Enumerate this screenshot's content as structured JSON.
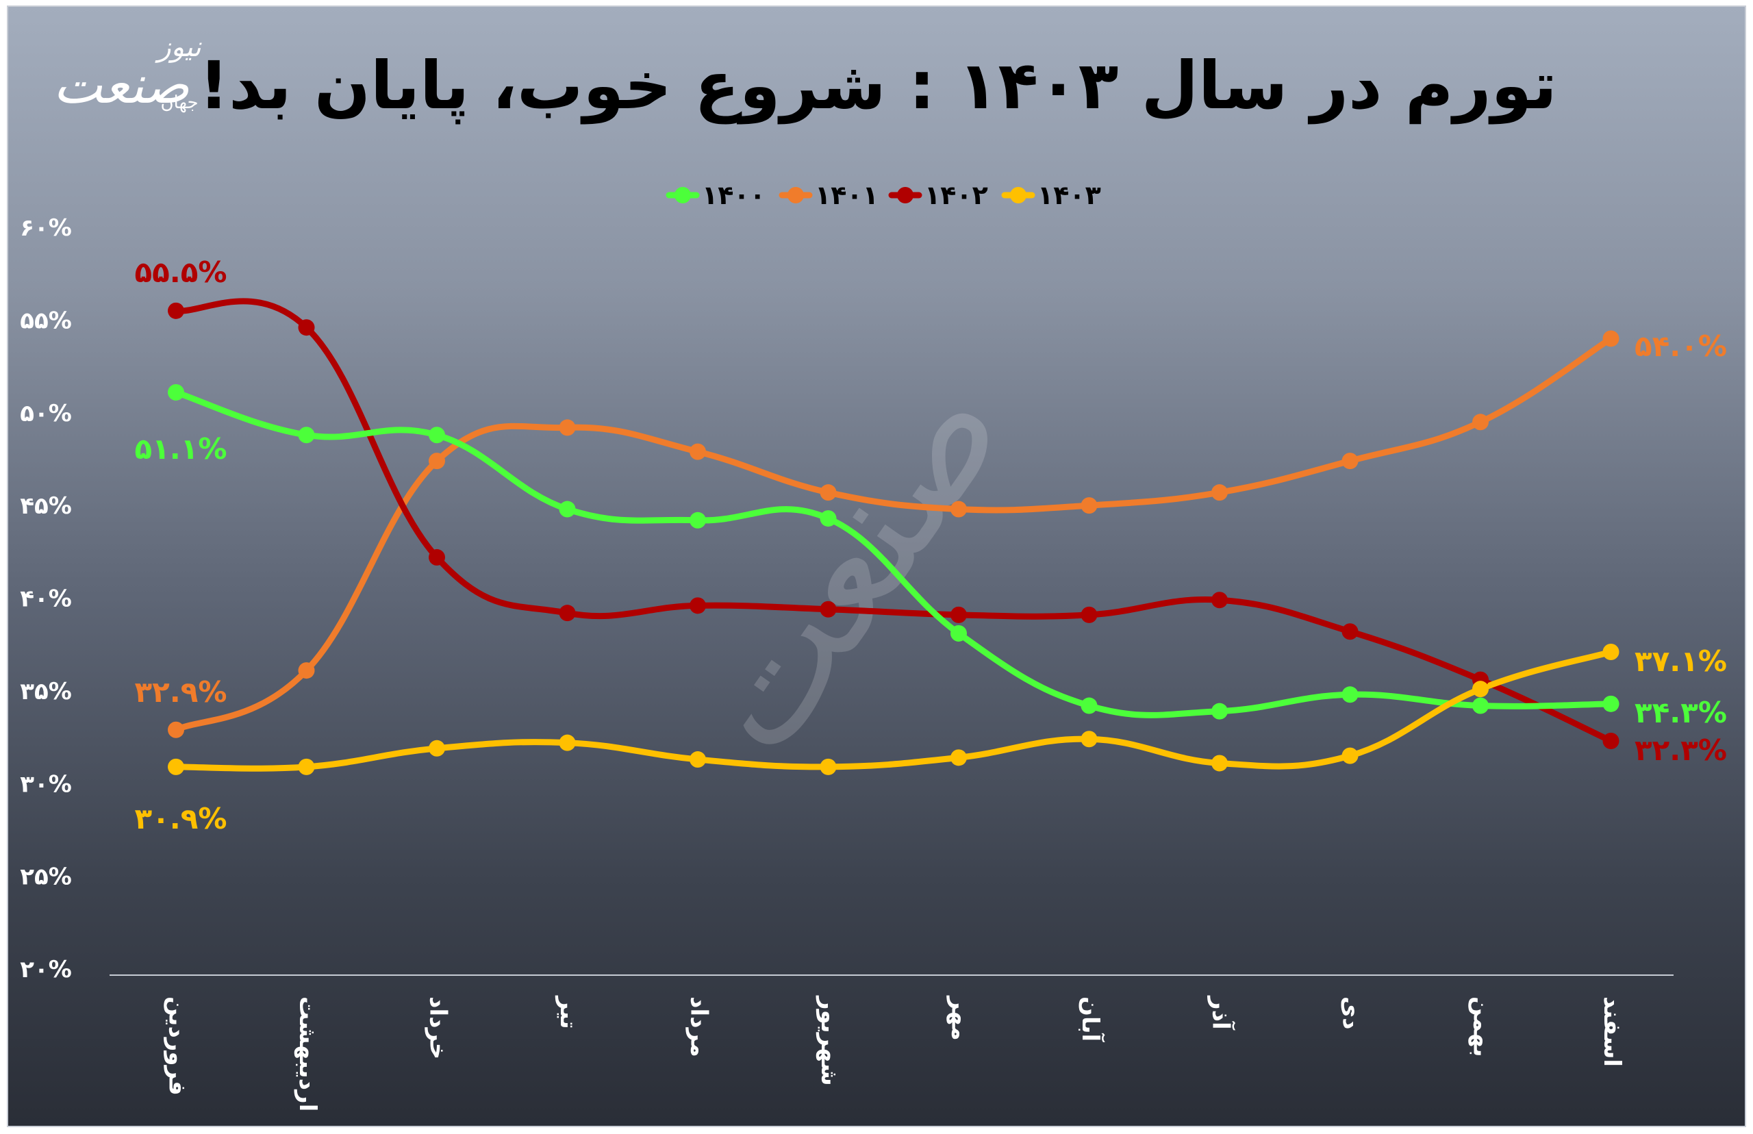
{
  "chart_data": {
    "type": "line",
    "title": "تورم در سال ۱۴۰۳ : شروع خوب، پایان بد!",
    "categories": [
      "فروردین",
      "اردیبهشت",
      "خرداد",
      "تیر",
      "مرداد",
      "شهریور",
      "مهر",
      "آبان",
      "آذر",
      "دی",
      "بهمن",
      "اسفند"
    ],
    "y_tick_labels": [
      "۲۰%",
      "۲۵%",
      "۳۰%",
      "۳۵%",
      "۴۰%",
      "۴۵%",
      "۵۰%",
      "۵۵%",
      "۶۰%"
    ],
    "ylim": [
      20,
      60
    ],
    "grid": false,
    "legend_position": "top-center",
    "series": [
      {
        "name": "۱۴۰۰",
        "color": "#4cff3a",
        "values": [
          51.1,
          48.8,
          48.8,
          44.8,
          44.2,
          44.3,
          38.1,
          34.2,
          33.9,
          34.8,
          34.2,
          34.3
        ],
        "label_text": [
          "۵۱.۱%",
          "۳۴.۳%"
        ]
      },
      {
        "name": "۱۴۰۱",
        "color": "#f07c2b",
        "values": [
          32.9,
          36.1,
          47.4,
          49.2,
          47.9,
          45.7,
          44.8,
          45.0,
          45.7,
          47.4,
          49.5,
          54.0
        ],
        "label_text": [
          "۳۲.۹%",
          "۵۴.۰%"
        ]
      },
      {
        "name": "۱۴۰۲",
        "color": "#b00000",
        "values": [
          55.5,
          54.6,
          42.2,
          39.2,
          39.6,
          39.4,
          39.1,
          39.1,
          39.9,
          38.2,
          35.6,
          32.3
        ],
        "label_text": [
          "۵۵.۵%",
          "۳۲.۳%"
        ]
      },
      {
        "name": "۱۴۰۳",
        "color": "#ffc000",
        "values": [
          30.9,
          30.9,
          31.9,
          32.2,
          31.3,
          30.9,
          31.4,
          32.4,
          31.1,
          31.5,
          35.1,
          37.1
        ],
        "label_text": [
          "۳۰.۹%",
          "۳۷.۱%"
        ]
      }
    ]
  },
  "logo": {
    "line1": "صنعت",
    "line2": "نیوز",
    "line3": "جهان"
  }
}
